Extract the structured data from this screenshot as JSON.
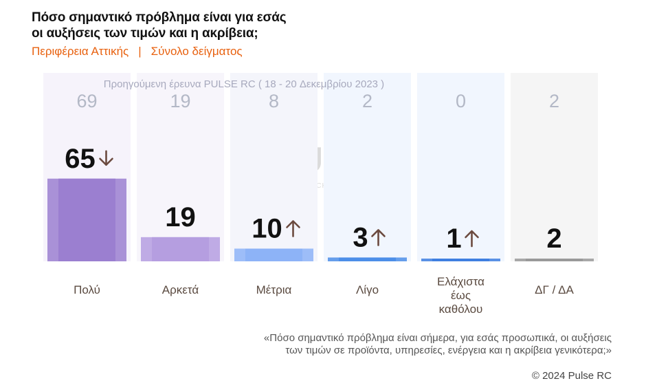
{
  "title_line1": "Πόσο σημαντικό πρόβλημα είναι για εσάς",
  "title_line2": "οι αυξήσεις των τιμών και η ακρίβεια;",
  "subtitle_region": "Περιφέρεια Αττικής",
  "subtitle_sep": "|",
  "subtitle_sample": "Σύνολο δείγματος",
  "previous_survey_label": "Προηγούμενη έρευνα  PULSE RC   ( 18 - 20 Δεκεμβρίου 2023 )",
  "watermark": {
    "brand": "PULSE",
    "tagline": "RESEARCH & CONSULTING"
  },
  "footnote_line1": "«Πόσο σημαντικό πρόβλημα είναι σήμερα, για εσάς προσωπικά, οι αυξήσεις",
  "footnote_line2": "των τιμών σε προϊόντα, υπηρεσίες, ενέργεια και η ακρίβεια γενικότερα;»",
  "copyright": "© 2024 Pulse RC",
  "chart_data": {
    "type": "bar",
    "categories": [
      "Πολύ",
      "Αρκετά",
      "Μέτρια",
      "Λίγο",
      "Ελάχιστα έως καθόλου",
      "ΔΓ / ΔΑ"
    ],
    "category_lines": [
      [
        "Πολύ"
      ],
      [
        "Αρκετά"
      ],
      [
        "Μέτρια"
      ],
      [
        "Λίγο"
      ],
      [
        "Ελάχιστα",
        "έως",
        "καθόλου"
      ],
      [
        "ΔΓ / ΔΑ"
      ]
    ],
    "series": [
      {
        "name": "",
        "values": [
          65,
          19,
          10,
          3,
          1,
          2
        ]
      },
      {
        "name": "Προηγούμενη έρευνα",
        "values": [
          69,
          19,
          8,
          2,
          0,
          2
        ]
      }
    ],
    "changes": [
      "down",
      "none",
      "up",
      "up",
      "up",
      "none"
    ],
    "bar_colors": [
      "#9b7fd0",
      "#b59ee0",
      "#8db3f7",
      "#4c8ee8",
      "#3f7fe0",
      "#9a9a9a"
    ],
    "bg_colors": [
      "#f6f3fb",
      "#f7f5fb",
      "#f4f5fb",
      "#f1f6fe",
      "#f1f6fe",
      "#f5f5f5"
    ],
    "ylim": [
      0,
      100
    ],
    "arrow_color": "#6b4a3f"
  }
}
